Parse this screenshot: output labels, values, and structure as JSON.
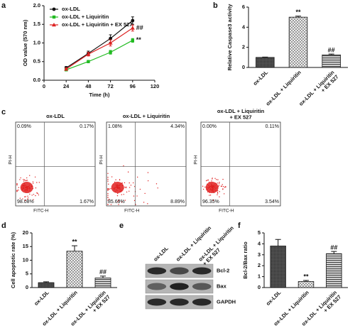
{
  "chart_data": [
    {
      "type": "line",
      "panel": "a",
      "xlabel": "Time (h)",
      "ylabel": "OD value (570 nm)",
      "x": [
        24,
        48,
        72,
        96
      ],
      "xlim": [
        0,
        120
      ],
      "xticks": [
        0,
        24,
        48,
        72,
        96,
        120
      ],
      "ylim": [
        0,
        2
      ],
      "yticks": [
        {
          "value": 0,
          "label": "0.0"
        },
        {
          "value": 0.5,
          "label": "0.5"
        },
        {
          "value": 1,
          "label": "1.0"
        },
        {
          "value": 1.5,
          "label": "1.5"
        },
        {
          "value": 2,
          "label": "2.0"
        }
      ],
      "legend": "upper left",
      "series": [
        {
          "name": "ox-LDL",
          "color": "#111111",
          "marker": "circle",
          "values": [
            0.33,
            0.72,
            1.12,
            1.6
          ],
          "errors": [
            0.04,
            0.06,
            0.1,
            0.1
          ],
          "annotation": null
        },
        {
          "name": "ox-LDL + Liquiritin",
          "color": "#22bb22",
          "marker": "square",
          "values": [
            0.28,
            0.5,
            0.75,
            1.07
          ],
          "errors": [
            0.03,
            0.03,
            0.05,
            0.05
          ],
          "annotation": "**"
        },
        {
          "name": "ox-LDL + Liquiritin + EX 527",
          "color": "#dd2222",
          "marker": "triangle",
          "values": [
            0.3,
            0.7,
            1.0,
            1.4
          ],
          "errors": [
            0.03,
            0.05,
            0.08,
            0.08
          ],
          "annotation": "##"
        }
      ]
    },
    {
      "type": "bar",
      "panel": "b",
      "ylabel": "Relative Caspase3 activity",
      "categories": [
        "ox-LDL",
        "ox-LDL + Liquiritin",
        "ox-LDL + Liquiritin + EX 527"
      ],
      "values": [
        1.0,
        5.0,
        1.25
      ],
      "errors": [
        0.03,
        0.1,
        0.08
      ],
      "annotations": [
        null,
        "**",
        "##"
      ],
      "patterns": [
        "dots",
        "checker",
        "stripes"
      ],
      "ylim": [
        0,
        6
      ],
      "yticks": [
        0,
        2,
        4,
        6
      ]
    },
    {
      "type": "flow",
      "panel": "c",
      "xlabel": "FITC-H",
      "ylabel": "PI-H",
      "plots": [
        {
          "title": "ox-LDL",
          "values": [
            0.09,
            0.17,
            98.08,
            1.67
          ],
          "value_labels": [
            "0.09%",
            "0.17%",
            "98.08%",
            "1.67%"
          ]
        },
        {
          "title": "ox-LDL + Liquiritin",
          "values": [
            1.08,
            4.34,
            85.69,
            8.89
          ],
          "value_labels": [
            "1.08%",
            "4.34%",
            "85.69%",
            "8.89%"
          ]
        },
        {
          "title": "ox-LDL + Liquiritin + EX 527",
          "values": [
            0.0,
            0.11,
            96.35,
            3.54
          ],
          "value_labels": [
            "0.00%",
            "0.11%",
            "96.35%",
            "3.54%"
          ]
        }
      ]
    },
    {
      "type": "bar",
      "panel": "d",
      "ylabel": "Cell apoptotic rate (%)",
      "categories": [
        "ox-LDL",
        "ox-LDL + Liquiritin",
        "ox-LDL + Liquiritin + EX 527"
      ],
      "values": [
        1.8,
        13.3,
        3.5
      ],
      "errors": [
        0.3,
        2.0,
        0.7
      ],
      "annotations": [
        null,
        "**",
        "##"
      ],
      "patterns": [
        "dots",
        "checker",
        "stripes"
      ],
      "ylim": [
        0,
        20
      ],
      "yticks": [
        0,
        5,
        10,
        15,
        20
      ]
    },
    {
      "type": "blot",
      "panel": "e",
      "categories": [
        "ox-LDL",
        "ox-LDL + Liquiritin",
        "ox-LDL + Liquiritin + EX 527"
      ],
      "rows": [
        "Bcl-2",
        "Bax",
        "GAPDH"
      ]
    },
    {
      "type": "bar",
      "panel": "f",
      "ylabel": "Bcl-2/Bax ratio",
      "categories": [
        "ox-LDL",
        "ox-LDL + Liquiritin",
        "ox-LDL + Liquiritin + EX 527"
      ],
      "values": [
        3.8,
        0.55,
        3.1
      ],
      "errors": [
        0.6,
        0.1,
        0.2
      ],
      "annotations": [
        null,
        "**",
        "##"
      ],
      "patterns": [
        "dots",
        "checker",
        "stripes"
      ],
      "ylim": [
        0,
        5
      ],
      "yticks": [
        0,
        1,
        2,
        3,
        4,
        5
      ]
    }
  ]
}
